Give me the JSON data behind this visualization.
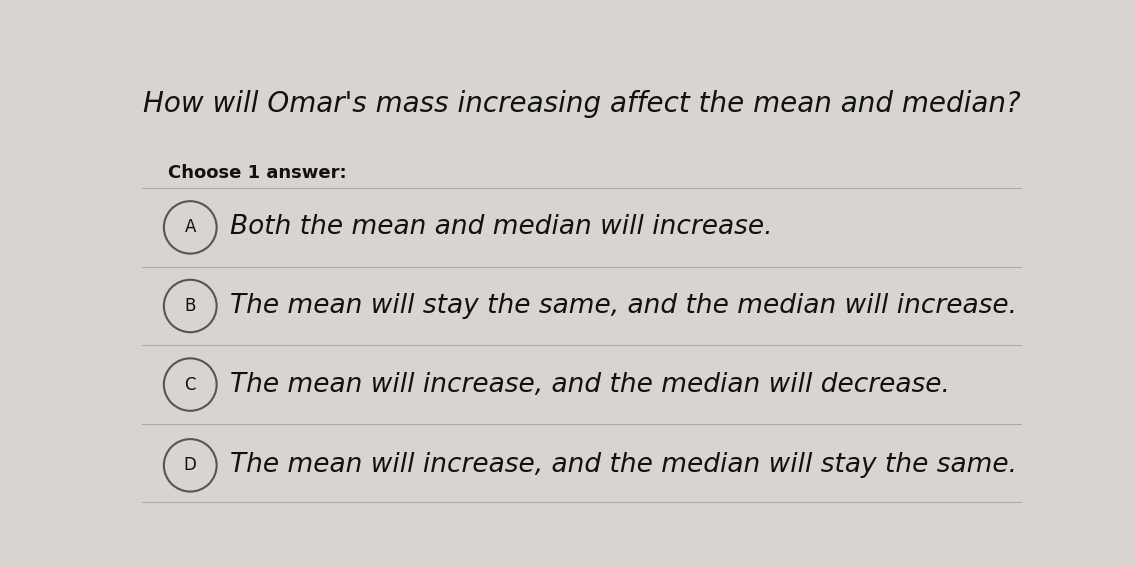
{
  "title": "How will Omar's mass increasing affect the mean and median?",
  "subtitle": "Choose 1 answer:",
  "options": [
    {
      "label": "A",
      "text": "Both the mean and median will increase."
    },
    {
      "label": "B",
      "text": "The mean will stay the same, and the median will increase."
    },
    {
      "label": "C",
      "text": "The mean will increase, and the median will decrease."
    },
    {
      "label": "D",
      "text": "The mean will increase, and the median will stay the same."
    }
  ],
  "bg_color": "#d8d5d0",
  "title_fontsize": 20,
  "subtitle_fontsize": 13,
  "option_fontsize": 19,
  "title_style": "italic",
  "option_style": "italic",
  "circle_color": "#555555",
  "text_color": "#111111",
  "divider_color": "#aaaaaa",
  "subtitle_weight": "bold"
}
